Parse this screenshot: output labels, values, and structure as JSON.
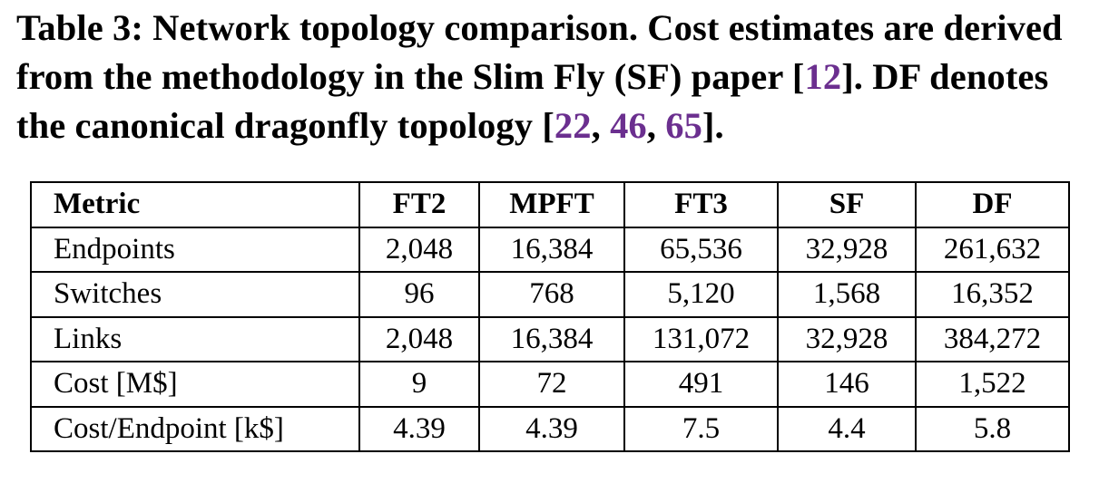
{
  "caption": {
    "parts": [
      "Table 3: Network topology comparison. Cost estimates are derived from the methodology in the Slim Fly (SF) paper [",
      "12",
      "]. DF denotes the canonical dragonfly topology [",
      "22",
      ", ",
      "46",
      ", ",
      "65",
      "]."
    ]
  },
  "table": {
    "header": [
      "Metric",
      "FT2",
      "MPFT",
      "FT3",
      "SF",
      "DF"
    ],
    "rows": [
      [
        "Endpoints",
        "2,048",
        "16,384",
        "65,536",
        "32,928",
        "261,632"
      ],
      [
        "Switches",
        "96",
        "768",
        "5,120",
        "1,568",
        "16,352"
      ],
      [
        "Links",
        "2,048",
        "16,384",
        "131,072",
        "32,928",
        "384,272"
      ],
      [
        "Cost [M$]",
        "9",
        "72",
        "491",
        "146",
        "1,522"
      ],
      [
        "Cost/Endpoint [k$]",
        "4.39",
        "4.39",
        "7.5",
        "4.4",
        "5.8"
      ]
    ]
  }
}
